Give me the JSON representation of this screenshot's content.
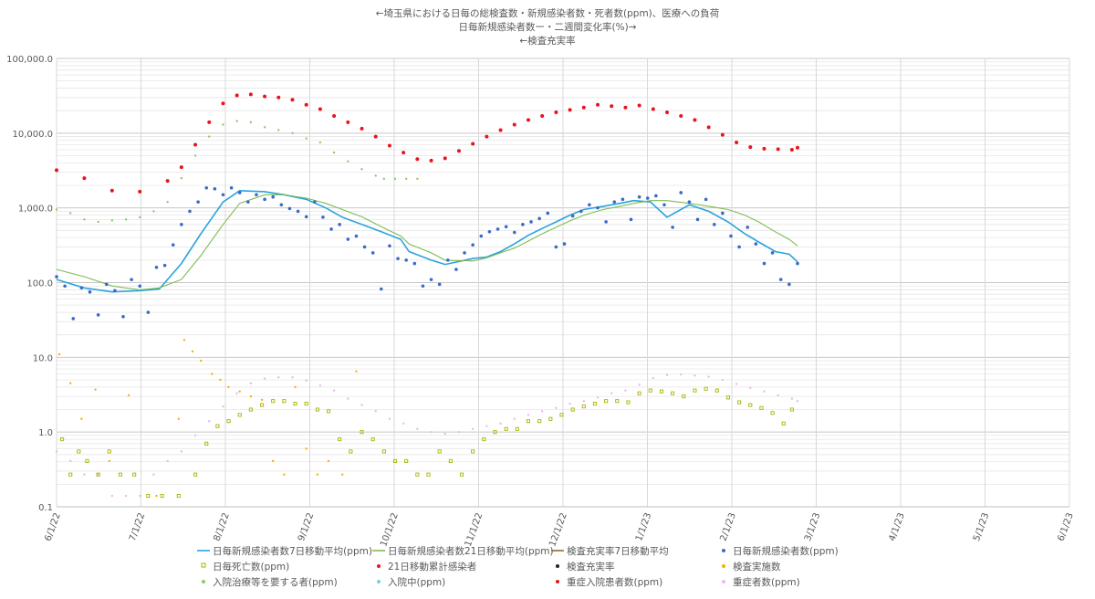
{
  "chart_data": {
    "type": "line",
    "title_lines": [
      "←埼玉県における日毎の総検査数・新規感染者数・死者数(ppm)、医療への負荷",
      "日毎新規感染者数ー・二週間変化率(%)→",
      "←検査充実率"
    ],
    "x_tick_labels": [
      "6/1/22",
      "7/1/22",
      "8/1/22",
      "9/1/22",
      "10/1/22",
      "11/1/22",
      "12/1/22",
      "1/1/23",
      "2/1/23",
      "3/1/23",
      "4/1/23",
      "5/1/23",
      "6/1/23"
    ],
    "y_scale": "log",
    "ylim": [
      0.1,
      100000
    ],
    "y_tick_labels": [
      "100,000.0",
      "10,000.0",
      "1,000.0",
      "100.0",
      "10.0",
      "1.0",
      "0.1"
    ],
    "grid": true,
    "legend_position": "bottom",
    "legend": [
      {
        "label": "日毎新規感染者数7日移動平均(ppm)",
        "symbol": "line",
        "color": "#29a3dd"
      },
      {
        "label": "日毎新規感染者数21日移動平均(ppm)",
        "symbol": "line",
        "color": "#7fba54"
      },
      {
        "label": "検査充実率7日移動平均",
        "symbol": "line",
        "color": "#8c6d31"
      },
      {
        "label": "日毎新規感染者数(ppm)",
        "symbol": "dot",
        "color": "#3a6bc4"
      },
      {
        "label": "日毎死亡数(ppm)",
        "symbol": "square",
        "color": "#a8b400"
      },
      {
        "label": "21日移動累計感染者",
        "symbol": "dot",
        "color": "#e8141a"
      },
      {
        "label": "検査充実率",
        "symbol": "dot",
        "color": "#222222"
      },
      {
        "label": "検査実施数",
        "symbol": "dot",
        "color": "#f2b400"
      },
      {
        "label": "入院治療等を要する者(ppm)",
        "symbol": "dot",
        "color": "#8cc96b"
      },
      {
        "label": "入院中(ppm)",
        "symbol": "dot",
        "color": "#6fd3e0"
      },
      {
        "label": "重症入院患者数(ppm)",
        "symbol": "dot",
        "color": "#e8141a"
      },
      {
        "label": "重症者数(ppm)",
        "symbol": "dot",
        "color": "#e9b8ee"
      }
    ],
    "series": [
      {
        "name": "日毎新規感染者数7日移動平均(ppm)",
        "kind": "line",
        "color": "#29a3dd",
        "x_days": [
          0,
          10,
          20,
          30,
          37,
          45,
          52,
          60,
          66,
          75,
          82,
          90,
          97,
          103,
          110,
          117,
          124,
          127,
          135,
          140,
          150,
          155,
          160,
          165,
          170,
          175,
          180,
          185,
          190,
          197,
          203,
          208,
          214,
          220,
          228,
          235,
          242,
          248,
          253,
          259,
          264,
          267
        ],
        "values": [
          110,
          85,
          75,
          78,
          82,
          180,
          450,
          1200,
          1700,
          1650,
          1500,
          1300,
          1000,
          750,
          600,
          480,
          380,
          260,
          200,
          175,
          210,
          220,
          260,
          330,
          430,
          530,
          650,
          800,
          950,
          1050,
          1150,
          1250,
          1200,
          750,
          1100,
          900,
          650,
          450,
          350,
          260,
          240,
          190
        ]
      },
      {
        "name": "日毎新規感染者数21日移動平均(ppm)",
        "kind": "line",
        "color": "#7fba54",
        "x_days": [
          0,
          10,
          20,
          30,
          37,
          45,
          52,
          60,
          66,
          75,
          82,
          90,
          97,
          103,
          110,
          117,
          124,
          127,
          135,
          140,
          150,
          155,
          160,
          165,
          170,
          175,
          180,
          185,
          190,
          197,
          203,
          208,
          214,
          220,
          228,
          235,
          242,
          248,
          253,
          259,
          264,
          267
        ],
        "values": [
          150,
          120,
          90,
          80,
          85,
          110,
          230,
          600,
          1150,
          1500,
          1500,
          1350,
          1150,
          950,
          760,
          560,
          420,
          330,
          250,
          200,
          195,
          215,
          250,
          290,
          360,
          450,
          550,
          670,
          800,
          950,
          1050,
          1150,
          1250,
          1250,
          1150,
          1050,
          950,
          800,
          650,
          480,
          380,
          310
        ]
      },
      {
        "name": "21日移動累計感染者",
        "kind": "dots",
        "color": "#e8141a",
        "x_days": [
          0,
          10,
          20,
          30,
          40,
          45,
          50,
          55,
          60,
          65,
          70,
          75,
          80,
          85,
          90,
          95,
          100,
          105,
          110,
          115,
          120,
          125,
          130,
          135,
          140,
          145,
          150,
          155,
          160,
          165,
          170,
          175,
          180,
          185,
          190,
          195,
          200,
          205,
          210,
          215,
          220,
          225,
          230,
          235,
          240,
          245,
          250,
          255,
          260,
          265,
          267
        ],
        "values": [
          3200,
          2500,
          1700,
          1650,
          2300,
          3500,
          7000,
          14000,
          25000,
          32000,
          33000,
          31000,
          30000,
          28000,
          24000,
          21000,
          17000,
          14000,
          11500,
          9000,
          6800,
          5500,
          4500,
          4300,
          4600,
          5800,
          7200,
          9000,
          11000,
          13000,
          15000,
          17000,
          19000,
          20500,
          22000,
          24000,
          23000,
          22000,
          23500,
          21000,
          19000,
          17000,
          15000,
          12000,
          9500,
          7500,
          6500,
          6200,
          6100,
          6000,
          6400
        ]
      },
      {
        "name": "日毎新規感染者数(ppm)",
        "kind": "dots",
        "color": "#3a6bc4",
        "x_days": [
          0,
          3,
          6,
          9,
          12,
          15,
          18,
          21,
          24,
          27,
          30,
          33,
          36,
          39,
          42,
          45,
          48,
          51,
          54,
          57,
          60,
          63,
          66,
          69,
          72,
          75,
          78,
          81,
          84,
          87,
          90,
          93,
          96,
          99,
          102,
          105,
          108,
          111,
          114,
          117,
          120,
          123,
          126,
          129,
          132,
          135,
          138,
          141,
          144,
          147,
          150,
          153,
          156,
          159,
          162,
          165,
          168,
          171,
          174,
          177,
          180,
          183,
          186,
          189,
          192,
          195,
          198,
          201,
          204,
          207,
          210,
          213,
          216,
          219,
          222,
          225,
          228,
          231,
          234,
          237,
          240,
          243,
          246,
          249,
          252,
          255,
          258,
          261,
          264,
          267
        ],
        "values": [
          120,
          90,
          33,
          85,
          75,
          37,
          95,
          78,
          35,
          110,
          90,
          40,
          160,
          170,
          320,
          600,
          900,
          1200,
          1850,
          1800,
          1500,
          1850,
          1600,
          1200,
          1500,
          1300,
          1400,
          1100,
          980,
          900,
          760,
          1200,
          750,
          520,
          600,
          380,
          420,
          300,
          250,
          82,
          310,
          210,
          200,
          180,
          90,
          110,
          95,
          200,
          150,
          250,
          320,
          420,
          480,
          520,
          560,
          470,
          600,
          650,
          720,
          850,
          300,
          330,
          780,
          900,
          1100,
          1000,
          650,
          1200,
          1300,
          700,
          1400,
          1350,
          1450,
          1100,
          550,
          1600,
          1200,
          700,
          1300,
          600,
          850,
          420,
          300,
          550,
          330,
          180,
          250,
          110,
          95,
          180
        ]
      },
      {
        "name": "日毎死亡数(ppm)",
        "kind": "squares",
        "color": "#a8b400",
        "x_days": [
          2,
          5,
          8,
          11,
          15,
          19,
          23,
          28,
          33,
          38,
          44,
          50,
          54,
          58,
          62,
          66,
          70,
          74,
          78,
          82,
          86,
          90,
          94,
          98,
          102,
          106,
          110,
          114,
          118,
          122,
          126,
          130,
          134,
          138,
          142,
          146,
          150,
          154,
          158,
          162,
          166,
          170,
          174,
          178,
          182,
          186,
          190,
          194,
          198,
          202,
          206,
          210,
          214,
          218,
          222,
          226,
          230,
          234,
          238,
          242,
          246,
          250,
          254,
          258,
          262,
          265
        ],
        "values": [
          0.8,
          0.27,
          0.55,
          0.41,
          0.27,
          0.55,
          0.27,
          0.27,
          0.14,
          0.14,
          0.14,
          0.27,
          0.7,
          1.2,
          1.4,
          1.7,
          2.0,
          2.3,
          2.6,
          2.6,
          2.4,
          2.4,
          2.0,
          1.9,
          0.8,
          0.55,
          1.0,
          0.8,
          0.55,
          0.41,
          0.41,
          0.27,
          0.27,
          0.55,
          0.41,
          0.27,
          0.55,
          0.8,
          1.0,
          1.1,
          1.1,
          1.4,
          1.4,
          1.5,
          1.7,
          2.0,
          2.2,
          2.4,
          2.6,
          2.6,
          2.5,
          3.3,
          3.6,
          3.5,
          3.3,
          3.0,
          3.6,
          3.8,
          3.6,
          2.9,
          2.5,
          2.3,
          2.1,
          1.8,
          1.3,
          2.0
        ]
      },
      {
        "name": "入院治療等を要する者(ppm)",
        "kind": "dots",
        "color": "#8cc96b",
        "x_days": [
          0,
          5,
          10,
          15,
          20,
          25,
          30,
          35,
          40,
          45,
          50,
          55,
          60,
          65,
          70,
          75,
          80,
          85,
          90,
          95,
          100,
          105,
          110,
          115,
          118,
          122,
          126,
          130
        ],
        "values": [
          950,
          850,
          700,
          650,
          680,
          700,
          750,
          900,
          1200,
          2500,
          5000,
          9000,
          13000,
          14500,
          14000,
          12000,
          11000,
          10000,
          8500,
          7500,
          5500,
          4200,
          3300,
          2700,
          2450,
          2450,
          2450,
          2450
        ]
      },
      {
        "name": "重症者数(ppm)",
        "kind": "dots",
        "color": "#e9b8ee",
        "x_days": [
          0,
          5,
          10,
          15,
          20,
          25,
          30,
          35,
          40,
          45,
          50,
          55,
          60,
          65,
          70,
          75,
          80,
          85,
          90,
          95,
          100,
          105,
          110,
          115,
          120,
          125,
          130,
          135,
          140,
          145,
          150,
          155,
          160,
          165,
          170,
          175,
          180,
          185,
          190,
          195,
          200,
          205,
          210,
          215,
          220,
          225,
          230,
          235,
          240,
          245,
          250,
          255,
          260,
          265,
          267
        ],
        "values": [
          0.55,
          0.41,
          0.27,
          0.27,
          0.14,
          0.14,
          0.14,
          0.27,
          0.41,
          0.55,
          0.9,
          1.4,
          2.2,
          3.3,
          4.5,
          5.2,
          5.4,
          5.4,
          4.9,
          4.2,
          3.6,
          2.8,
          2.3,
          1.9,
          1.5,
          1.3,
          1.1,
          1.0,
          0.95,
          1.0,
          1.1,
          1.2,
          1.3,
          1.5,
          1.7,
          1.9,
          2.1,
          2.4,
          2.6,
          2.9,
          3.3,
          3.6,
          4.3,
          5.3,
          5.8,
          5.9,
          5.7,
          5.5,
          5.0,
          4.4,
          3.9,
          3.5,
          3.1,
          2.8,
          2.6
        ]
      },
      {
        "name": "検査実施数",
        "kind": "dots",
        "color": "#f2b400",
        "x_days": [
          1,
          5,
          9,
          14,
          19,
          26,
          36,
          44,
          46,
          49,
          52,
          56,
          59,
          62,
          66,
          70,
          74,
          78,
          82,
          86,
          90,
          94,
          98,
          103,
          108
        ],
        "values": [
          11,
          4.5,
          1.5,
          3.7,
          0.41,
          3.1,
          0.14,
          1.5,
          17,
          12,
          9,
          6,
          5,
          4,
          3.5,
          3,
          2.7,
          0.41,
          0.27,
          4,
          0.6,
          0.27,
          0.41,
          0.27,
          6.5
        ]
      }
    ]
  }
}
